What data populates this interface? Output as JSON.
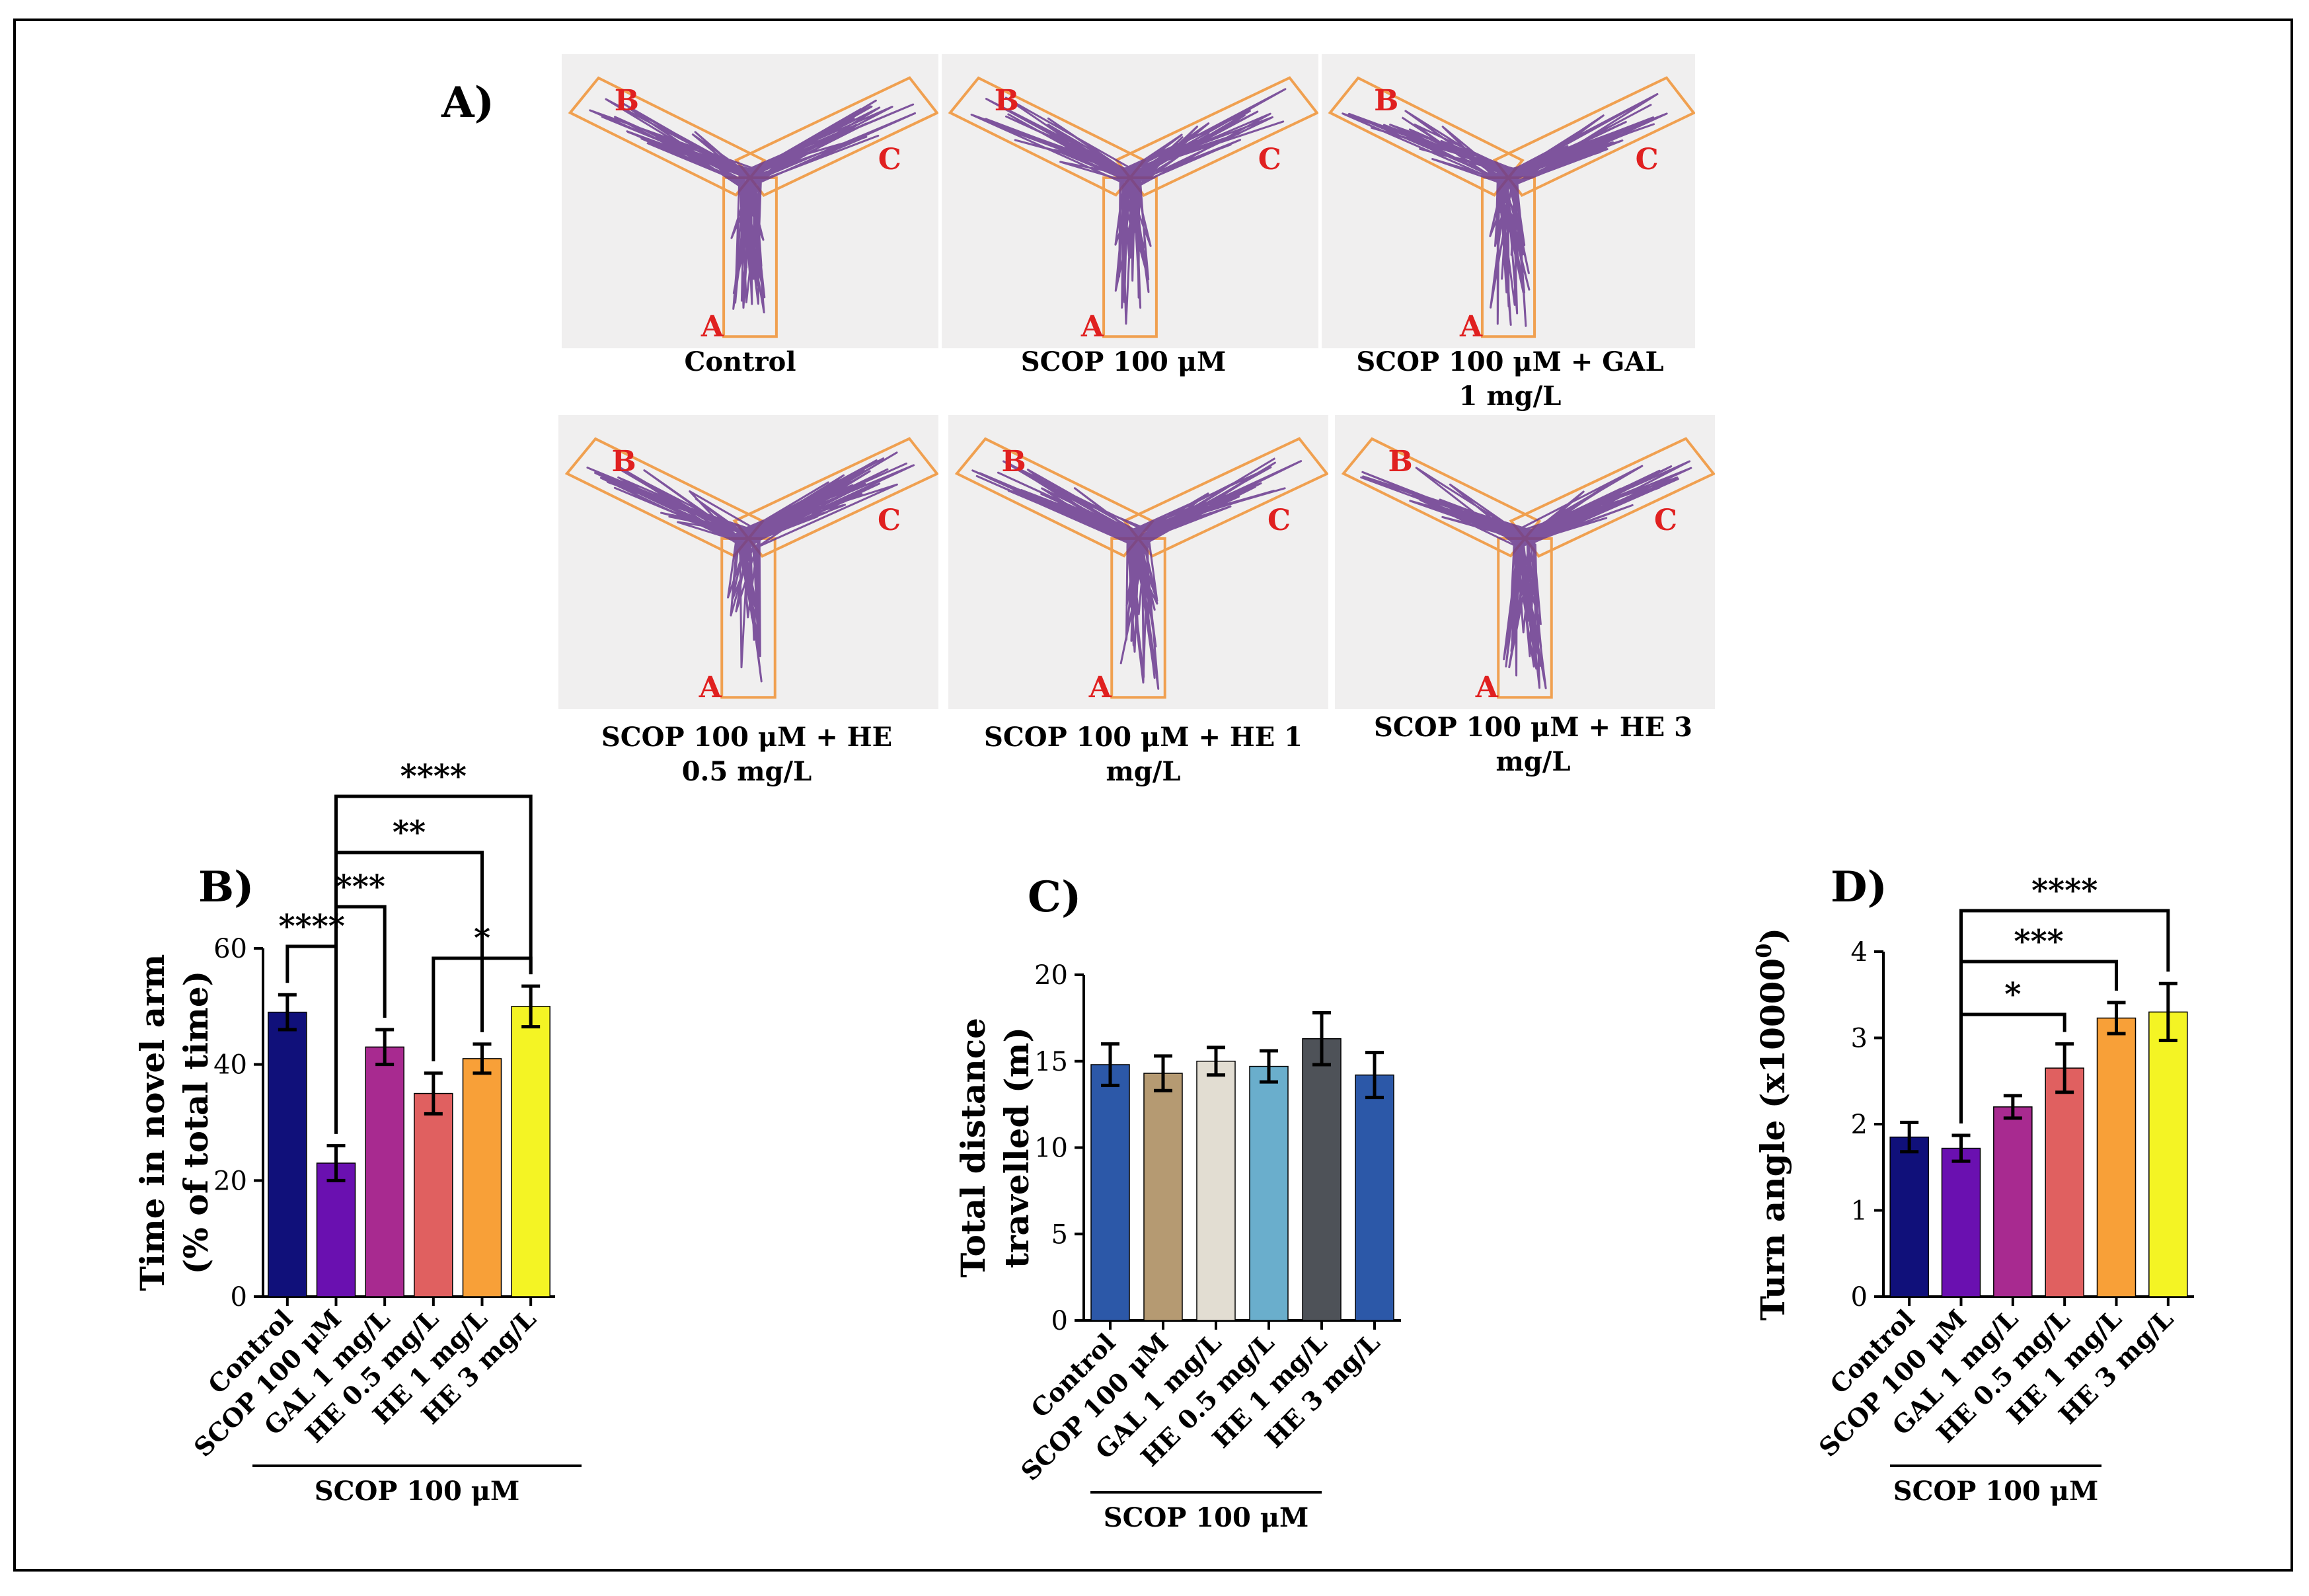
{
  "panels": {
    "a": "A)",
    "b": "B)",
    "c": "C)",
    "d": "D)"
  },
  "maze": {
    "arm_labels": {
      "a": "A",
      "b": "B",
      "c": "C"
    },
    "captions": [
      "Control",
      "SCOP 100 μM",
      "SCOP 100 μM + GAL\n1 mg/L",
      "SCOP 100 μM + HE\n0.5 mg/L",
      "SCOP 100 μM + HE 1\nmg/L",
      "SCOP 100 μM + HE 3\nmg/L"
    ]
  },
  "colors": {
    "track": "#6b3a8f",
    "arm_outline": "#f0a050",
    "arm_label": "#e02020",
    "panel_b": [
      "#10107a",
      "#6a10b0",
      "#a82a90",
      "#e06060",
      "#f8a038",
      "#f4f424"
    ],
    "panel_c": [
      "#2c58a8",
      "#b59a72",
      "#e2ddd2",
      "#6aaecc",
      "#4e5258",
      "#2c58a8"
    ],
    "panel_d": [
      "#10107a",
      "#6a10b0",
      "#a82a90",
      "#e06060",
      "#f8a038",
      "#f4f424"
    ]
  },
  "chart_data": [
    {
      "id": "B",
      "type": "bar",
      "categories": [
        "Control",
        "SCOP 100 μM",
        "GAL 1 mg/L",
        "HE 0.5 mg/L",
        "HE 1 mg/L",
        "HE 3 mg/L"
      ],
      "values": [
        49,
        23,
        43,
        35,
        41,
        50
      ],
      "errors": [
        3,
        3,
        3,
        3.5,
        2.5,
        3.5
      ],
      "ylabel_line1": "Time in novel arm",
      "ylabel_line2": "(% of total time)",
      "ylim": [
        0,
        60
      ],
      "yticks": [
        0,
        20,
        40,
        60
      ],
      "group_label": "SCOP 100 μM",
      "significance": [
        {
          "from": 0,
          "to": 1,
          "label": "****"
        },
        {
          "from": 1,
          "to": 2,
          "label": "***"
        },
        {
          "from": 3,
          "to": 5,
          "label": "*"
        },
        {
          "from": 1,
          "to": 4,
          "label": "**"
        },
        {
          "from": 1,
          "to": 5,
          "label": "****"
        }
      ]
    },
    {
      "id": "C",
      "type": "bar",
      "categories": [
        "Control",
        "SCOP 100 μM",
        "GAL 1 mg/L",
        "HE 0.5 mg/L",
        "HE 1 mg/L",
        "HE 3 mg/L"
      ],
      "values": [
        14.8,
        14.3,
        15.0,
        14.7,
        16.3,
        14.2
      ],
      "errors": [
        1.2,
        1.0,
        0.8,
        0.9,
        1.5,
        1.3
      ],
      "ylabel_line1": "Total distance",
      "ylabel_line2": "travelled (m)",
      "ylim": [
        0,
        20
      ],
      "yticks": [
        0,
        5,
        10,
        15,
        20
      ],
      "group_label": "SCOP 100 μM",
      "significance": []
    },
    {
      "id": "D",
      "type": "bar",
      "categories": [
        "Control",
        "SCOP 100 μM",
        "GAL 1 mg/L",
        "HE 0.5 mg/L",
        "HE 1 mg/L",
        "HE 3 mg/L"
      ],
      "values": [
        1.85,
        1.72,
        2.2,
        2.65,
        3.23,
        3.3
      ],
      "errors": [
        0.17,
        0.15,
        0.13,
        0.28,
        0.18,
        0.33
      ],
      "ylabel_line1": "Turn angle (x10000",
      "ylabel_sup": "0",
      "ylabel_close": ")",
      "ylim": [
        0,
        4
      ],
      "yticks": [
        0,
        1,
        2,
        3,
        4
      ],
      "group_label": "SCOP 100 μM",
      "significance": [
        {
          "from": 1,
          "to": 3,
          "label": "*"
        },
        {
          "from": 1,
          "to": 4,
          "label": "***"
        },
        {
          "from": 1,
          "to": 5,
          "label": "****"
        }
      ]
    }
  ]
}
